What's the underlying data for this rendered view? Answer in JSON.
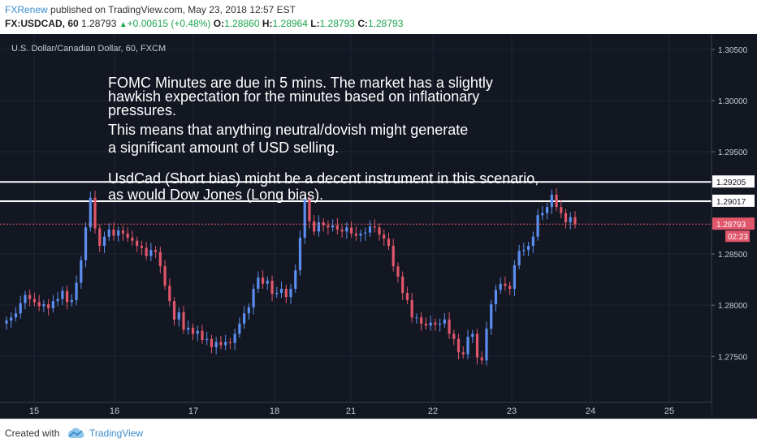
{
  "header": {
    "author": "FXRenew",
    "published_text": "published on TradingView.com, May 23, 2018 12:57 EST",
    "symbol": "FX:USDCAD, 60",
    "last": "1.28793",
    "change": "+0.00615 (+0.48%)",
    "open_label": "O:",
    "open": "1.28860",
    "high_label": "H:",
    "high": "1.28964",
    "low_label": "L:",
    "low": "1.28793",
    "close_label": "C:",
    "close": "1.28793"
  },
  "chart_title": "U.S. Dollar/Canadian Dollar, 60, FXCM",
  "annotation": [
    "FOMC Minutes are due in 5 mins. The market has a slightly",
    "hawkish expectation for the minutes based on inflationary",
    "pressures.",
    "This means that anything neutral/dovish might generate",
    "a significant amount of USD selling.",
    "",
    "UsdCad (Short bias) might be a decent instrument in this scenario,",
    "as would Dow Jones (Long bias)."
  ],
  "footer": {
    "created": "Created with",
    "brand": "TradingView"
  },
  "colors": {
    "background": "#131722",
    "up": "#5b8ef0",
    "down": "#e0566a",
    "level_line": "#ffffff",
    "price_label": "#e0566a"
  },
  "chart_data": {
    "type": "candlestick",
    "title": "U.S. Dollar/Canadian Dollar, 60, FXCM",
    "x_tick_labels": [
      "15",
      "16",
      "17",
      "18",
      "21",
      "22",
      "23",
      "24",
      "25"
    ],
    "y_tick_labels": [
      "1.30500",
      "1.30000",
      "1.29500",
      "1.29000",
      "1.28500",
      "1.28000",
      "1.27500"
    ],
    "y_ticks": [
      1.305,
      1.3,
      1.295,
      1.29,
      1.285,
      1.28,
      1.275
    ],
    "ylim": [
      1.2705,
      1.3065
    ],
    "horizontal_levels": [
      {
        "value": 1.29205,
        "label": "1.29205"
      },
      {
        "value": 1.29017,
        "label": "1.29017"
      }
    ],
    "last_price": {
      "value": 1.28793,
      "label": "1.28793",
      "countdown": "02:23"
    },
    "closes": [
      1.2785,
      1.2788,
      1.2792,
      1.2802,
      1.281,
      1.2806,
      1.2803,
      1.2799,
      1.2801,
      1.2797,
      1.2804,
      1.2806,
      1.2814,
      1.2803,
      1.2805,
      1.2822,
      1.2844,
      1.2876,
      1.2905,
      1.2875,
      1.2858,
      1.2867,
      1.2874,
      1.2868,
      1.2873,
      1.287,
      1.2866,
      1.2863,
      1.2858,
      1.2856,
      1.2848,
      1.2854,
      1.2852,
      1.2838,
      1.2819,
      1.2804,
      1.2786,
      1.2793,
      1.2776,
      1.2778,
      1.2772,
      1.2775,
      1.2766,
      1.2767,
      1.2759,
      1.2764,
      1.2761,
      1.2764,
      1.2763,
      1.2772,
      1.2782,
      1.2792,
      1.2798,
      1.2816,
      1.2827,
      1.2821,
      1.2824,
      1.2811,
      1.2812,
      1.2816,
      1.2808,
      1.2816,
      1.2834,
      1.2866,
      1.2904,
      1.2882,
      1.2872,
      1.2881,
      1.2878,
      1.2876,
      1.2878,
      1.2874,
      1.2872,
      1.2876,
      1.287,
      1.2868,
      1.287,
      1.2871,
      1.2877,
      1.2876,
      1.2869,
      1.2865,
      1.2858,
      1.2838,
      1.2828,
      1.2812,
      1.2805,
      1.2788,
      1.2788,
      1.2782,
      1.278,
      1.2783,
      1.2781,
      1.2782,
      1.2786,
      1.2772,
      1.2767,
      1.2754,
      1.2752,
      1.2769,
      1.2772,
      1.2749,
      1.2746,
      1.2777,
      1.2801,
      1.2815,
      1.2821,
      1.2819,
      1.2816,
      1.2839,
      1.2853,
      1.2854,
      1.2858,
      1.2867,
      1.2888,
      1.289,
      1.2896,
      1.2908,
      1.2896,
      1.289,
      1.2881,
      1.2886,
      1.2879
    ],
    "opens": [
      1.2782,
      1.2785,
      1.2788,
      1.2792,
      1.2802,
      1.281,
      1.2806,
      1.2803,
      1.2799,
      1.2801,
      1.2797,
      1.2804,
      1.2806,
      1.2814,
      1.2803,
      1.2805,
      1.2822,
      1.2844,
      1.2876,
      1.2905,
      1.2875,
      1.2858,
      1.2867,
      1.2874,
      1.2868,
      1.2873,
      1.287,
      1.2866,
      1.2863,
      1.2858,
      1.2856,
      1.2848,
      1.2854,
      1.2852,
      1.2838,
      1.2819,
      1.2804,
      1.2786,
      1.2793,
      1.2776,
      1.2778,
      1.2772,
      1.2775,
      1.2766,
      1.2767,
      1.2759,
      1.2764,
      1.2761,
      1.2764,
      1.2763,
      1.2772,
      1.2782,
      1.2792,
      1.2798,
      1.2816,
      1.2827,
      1.2821,
      1.2824,
      1.2811,
      1.2812,
      1.2816,
      1.2808,
      1.2816,
      1.2834,
      1.2866,
      1.2904,
      1.2882,
      1.2872,
      1.2881,
      1.2878,
      1.2876,
      1.2878,
      1.2874,
      1.2872,
      1.2876,
      1.287,
      1.2868,
      1.287,
      1.2871,
      1.2877,
      1.2876,
      1.2869,
      1.2865,
      1.2858,
      1.2838,
      1.2828,
      1.2812,
      1.2805,
      1.2788,
      1.2788,
      1.2782,
      1.278,
      1.2783,
      1.2781,
      1.2782,
      1.2786,
      1.2772,
      1.2767,
      1.2754,
      1.2752,
      1.2769,
      1.2772,
      1.2749,
      1.2746,
      1.2777,
      1.2801,
      1.2815,
      1.2821,
      1.2819,
      1.2816,
      1.2839,
      1.2853,
      1.2854,
      1.2858,
      1.2867,
      1.2888,
      1.289,
      1.2896,
      1.2908,
      1.2896,
      1.289,
      1.2881,
      1.2886
    ]
  }
}
